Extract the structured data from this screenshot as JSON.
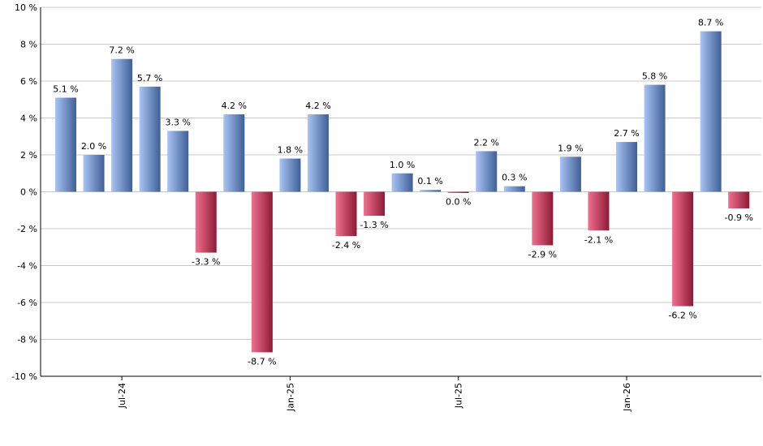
{
  "chart_data": {
    "type": "bar",
    "title": "",
    "xlabel": "",
    "ylabel": "",
    "ylim": [
      -10,
      10
    ],
    "grid": true,
    "legend": "none",
    "y_ticks": [
      "10 %",
      "8 %",
      "6 %",
      "4 %",
      "2 %",
      "0 %",
      "-2 %",
      "-4 %",
      "-6 %",
      "-8 %",
      "-10 %"
    ],
    "y_tick_values": [
      10,
      8,
      6,
      4,
      2,
      0,
      -2,
      -4,
      -6,
      -8,
      -10
    ],
    "x_tick_labels": [
      {
        "label": "Jul-24",
        "index": 2
      },
      {
        "label": "Jan-25",
        "index": 8
      },
      {
        "label": "Jul-25",
        "index": 14
      },
      {
        "label": "Jan-26",
        "index": 20
      }
    ],
    "values": [
      5.1,
      2.0,
      7.2,
      5.7,
      3.3,
      -3.3,
      4.2,
      -8.7,
      1.8,
      4.2,
      -2.4,
      -1.3,
      1.0,
      0.1,
      -0.05,
      2.2,
      0.3,
      -2.9,
      1.9,
      -2.1,
      2.7,
      5.8,
      -6.2,
      8.7,
      -0.9
    ],
    "labels": [
      "5.1 %",
      "2.0 %",
      "7.2 %",
      "5.7 %",
      "3.3 %",
      "-3.3 %",
      "4.2 %",
      "-8.7 %",
      "1.8 %",
      "4.2 %",
      "-2.4 %",
      "-1.3 %",
      "1.0 %",
      "0.1 %",
      "0.0 %",
      "2.2 %",
      "0.3 %",
      "-2.9 %",
      "1.9 %",
      "-2.1 %",
      "2.7 %",
      "5.8 %",
      "-6.2 %",
      "8.7 %",
      "-0.9 %"
    ],
    "colors": {
      "positive_light": "#a9c4f5",
      "positive_dark": "#3f5f96",
      "negative_light": "#f07090",
      "negative_dark": "#8e1a34",
      "grid": "#c8c8c8",
      "axis": "#000000"
    }
  }
}
